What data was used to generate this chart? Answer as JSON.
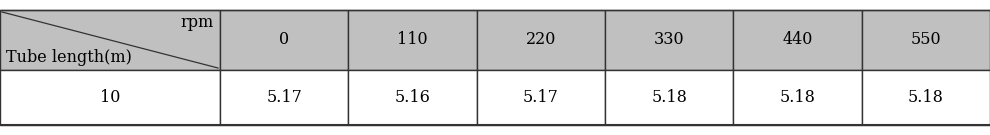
{
  "header_bg": "#c0c0c0",
  "row_bg": "#ffffff",
  "border_color": "#333333",
  "header_label_top": "rpm",
  "header_label_bottom": "Tube length(m)",
  "col_headers": [
    "0",
    "110",
    "220",
    "330",
    "440",
    "550"
  ],
  "row_label": "10",
  "row_values": [
    "5.17",
    "5.16",
    "5.17",
    "5.18",
    "5.18",
    "5.18"
  ],
  "font_size": 11.5,
  "fig_width": 9.9,
  "fig_height": 1.35,
  "dpi": 100
}
